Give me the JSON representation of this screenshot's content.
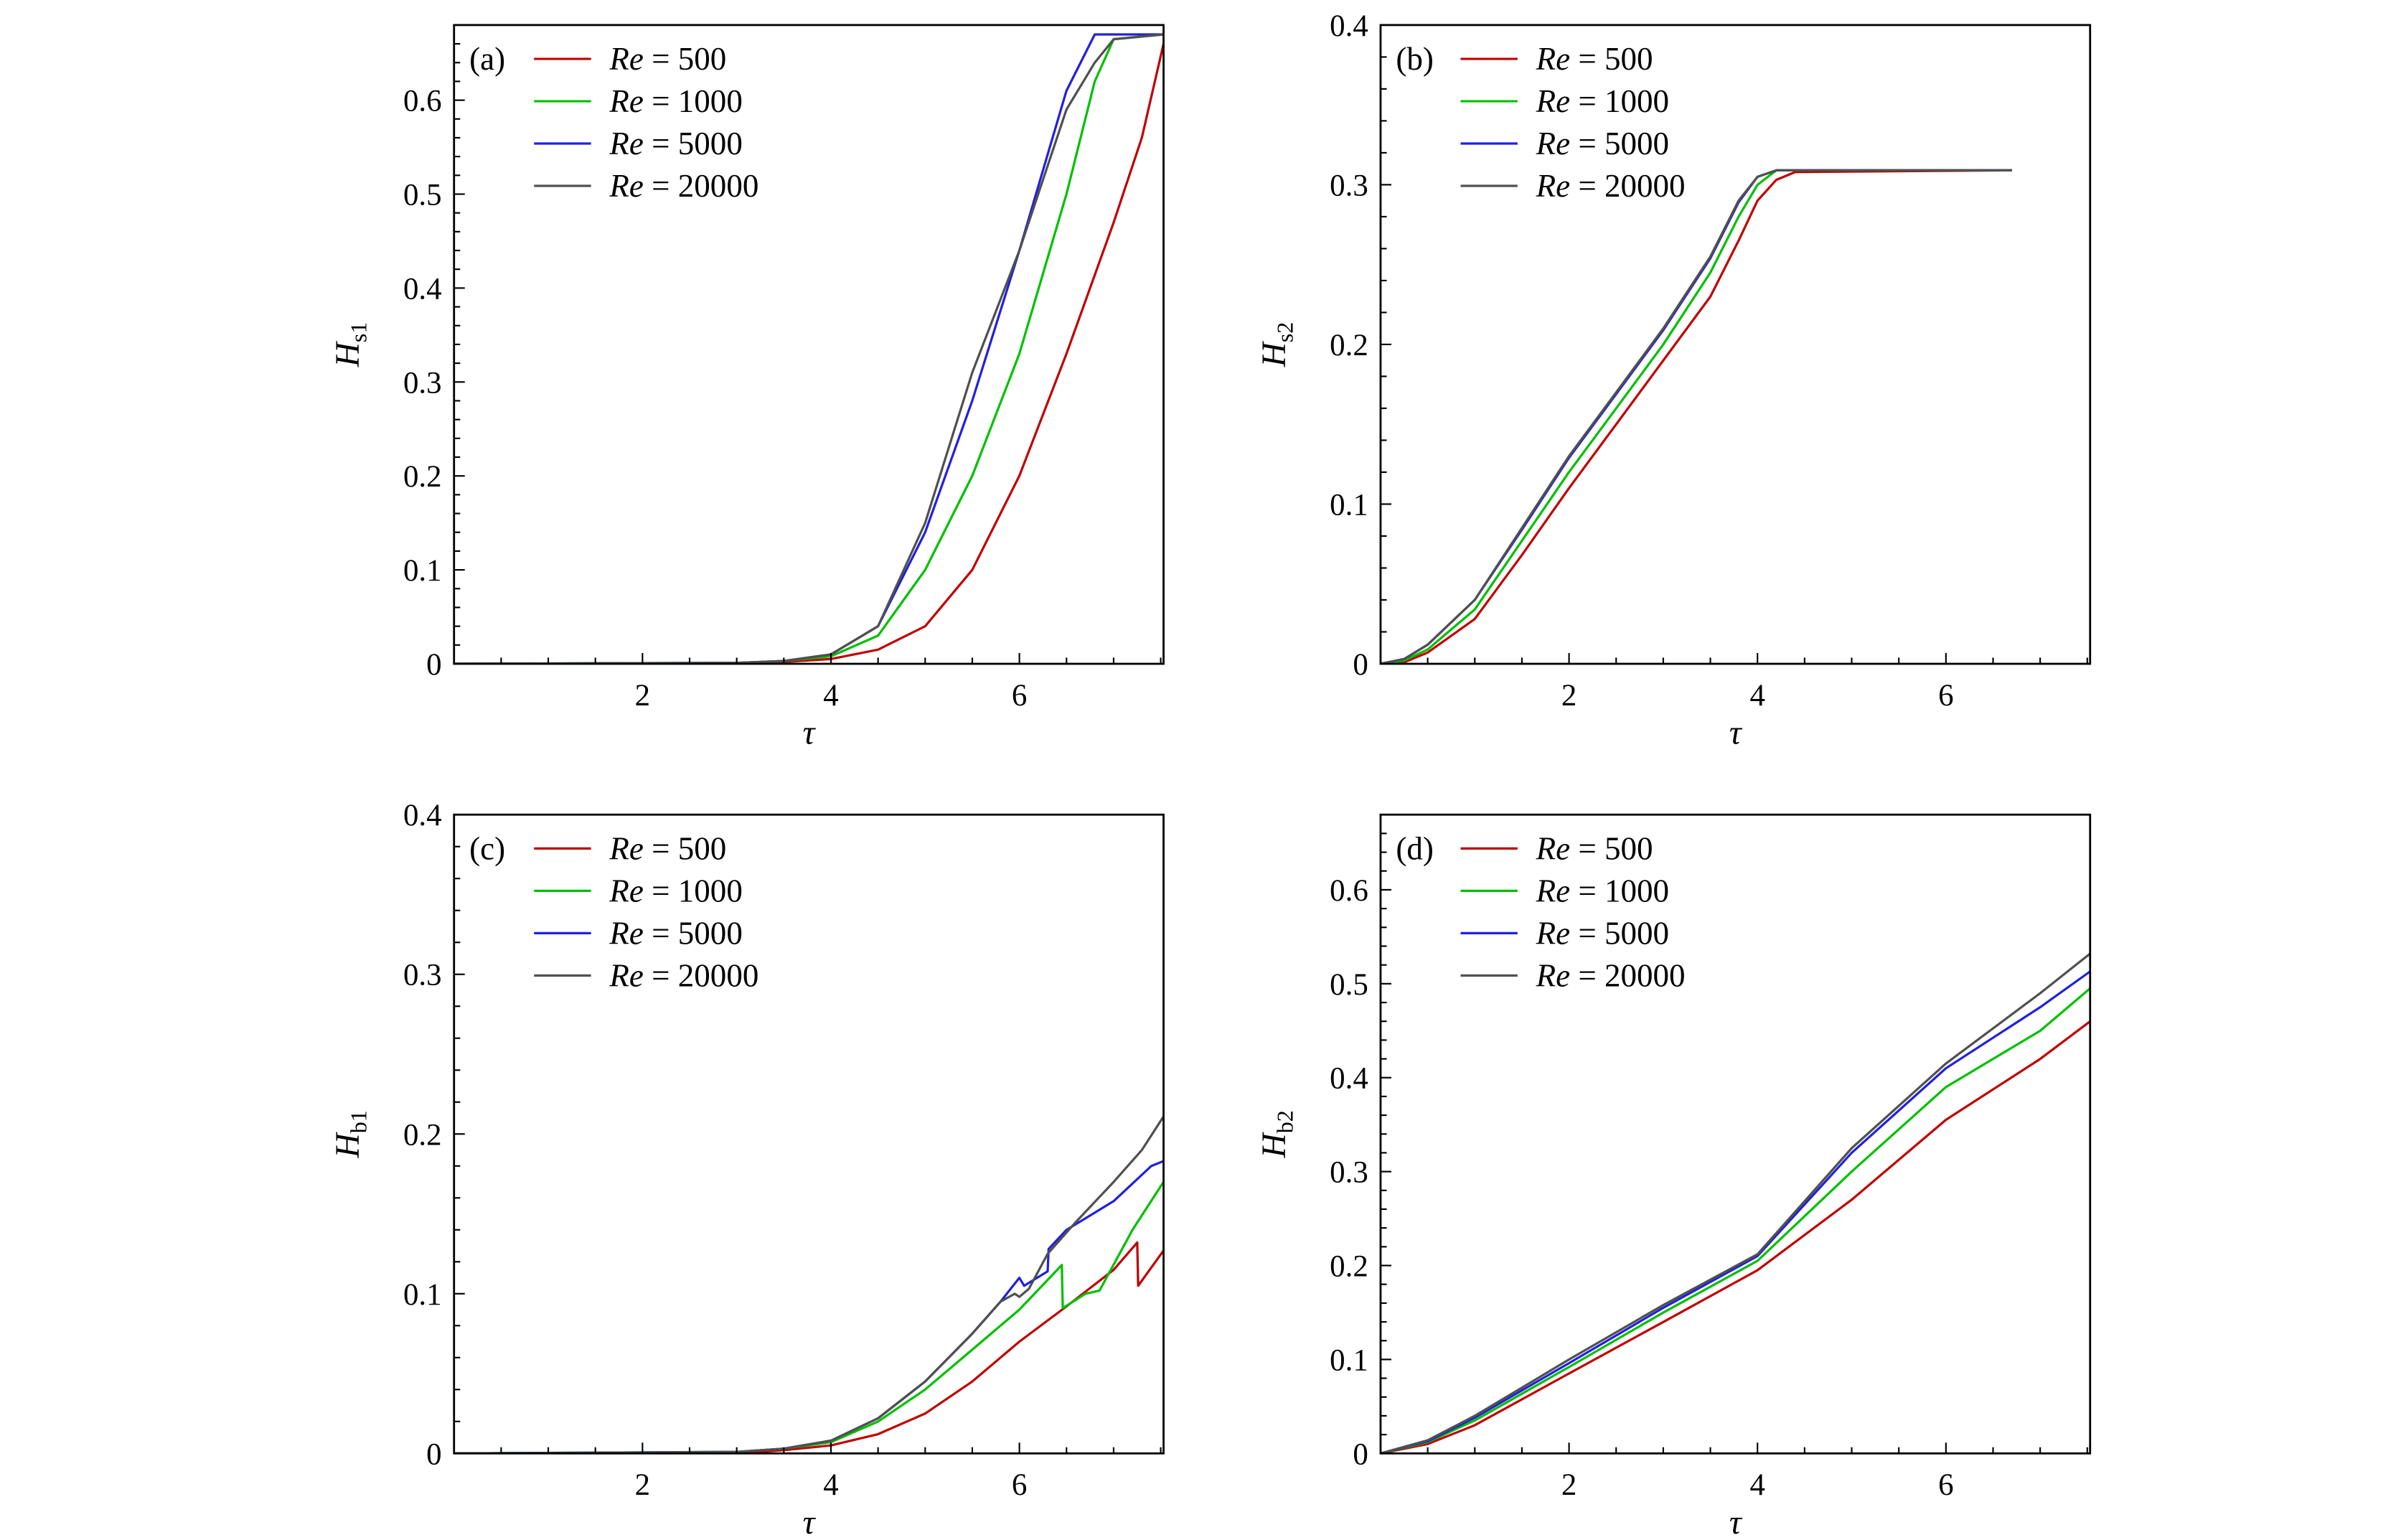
{
  "chart_data": [
    {
      "type": "line",
      "panel_label": "(a)",
      "xlabel": "τ",
      "ylabel": {
        "main": "H",
        "sub": "s1"
      },
      "xlim": [
        0,
        7.53
      ],
      "ylim": [
        0,
        0.68
      ],
      "xticks": [
        2,
        4,
        6
      ],
      "yticks": [
        0,
        0.1,
        0.2,
        0.3,
        0.4,
        0.5,
        0.6
      ],
      "ytick_labels": [
        "0",
        "0.1",
        "0.2",
        "0.3",
        "0.4",
        "0.5",
        "0.6"
      ],
      "legend_placement": "top-left",
      "series": [
        {
          "name": "Re = 500",
          "re_label": "Re",
          "value_label": "500",
          "color": "#c00000",
          "x": [
            0,
            3,
            3.5,
            4,
            4.5,
            5,
            5.5,
            6,
            6.5,
            7,
            7.3,
            7.53
          ],
          "y": [
            0,
            0,
            0.002,
            0.005,
            0.015,
            0.04,
            0.1,
            0.2,
            0.33,
            0.47,
            0.56,
            0.66
          ]
        },
        {
          "name": "Re = 1000",
          "re_label": "Re",
          "value_label": "1000",
          "color": "#00c000",
          "x": [
            0,
            3,
            3.5,
            4,
            4.5,
            5,
            5.5,
            6,
            6.5,
            6.8,
            7,
            7.53
          ],
          "y": [
            0,
            0.001,
            0.003,
            0.008,
            0.03,
            0.1,
            0.2,
            0.33,
            0.5,
            0.62,
            0.665,
            0.67
          ]
        },
        {
          "name": "Re = 5000",
          "re_label": "Re",
          "value_label": "5000",
          "color": "#2020e0",
          "x": [
            0,
            3,
            3.5,
            4,
            4.5,
            5,
            5.5,
            6,
            6.5,
            6.8,
            7.53
          ],
          "y": [
            0,
            0.001,
            0.003,
            0.01,
            0.04,
            0.14,
            0.28,
            0.44,
            0.61,
            0.67,
            0.67
          ]
        },
        {
          "name": "Re = 20000",
          "re_label": "Re",
          "value_label": "20000",
          "color": "#505050",
          "x": [
            0,
            3,
            3.5,
            4,
            4.5,
            5,
            5.5,
            6,
            6.5,
            6.8,
            7,
            7.53
          ],
          "y": [
            0,
            0.001,
            0.003,
            0.01,
            0.04,
            0.15,
            0.31,
            0.44,
            0.59,
            0.64,
            0.665,
            0.67
          ]
        }
      ]
    },
    {
      "type": "line",
      "panel_label": "(b)",
      "xlabel": "τ",
      "ylabel": {
        "main": "H",
        "sub": "s2"
      },
      "xlim": [
        0,
        7.53
      ],
      "ylim": [
        0,
        0.4
      ],
      "xticks": [
        2,
        4,
        6
      ],
      "yticks": [
        0,
        0.1,
        0.2,
        0.3,
        0.4
      ],
      "ytick_labels": [
        "0",
        "0.1",
        "0.2",
        "0.3",
        "0.4"
      ],
      "legend_placement": "top-left",
      "series": [
        {
          "name": "Re = 500",
          "re_label": "Re",
          "value_label": "500",
          "color": "#c00000",
          "x": [
            0,
            0.25,
            0.5,
            1,
            1.5,
            2,
            2.5,
            3,
            3.5,
            3.8,
            4,
            4.2,
            4.4,
            6.7
          ],
          "y": [
            0,
            0.001,
            0.007,
            0.028,
            0.068,
            0.11,
            0.15,
            0.19,
            0.23,
            0.265,
            0.29,
            0.303,
            0.308,
            0.309
          ]
        },
        {
          "name": "Re = 1000",
          "re_label": "Re",
          "value_label": "1000",
          "color": "#00c000",
          "x": [
            0,
            0.25,
            0.5,
            1,
            1.5,
            2,
            2.5,
            3,
            3.5,
            3.8,
            4,
            4.2,
            6.7
          ],
          "y": [
            0,
            0.002,
            0.009,
            0.034,
            0.077,
            0.12,
            0.16,
            0.2,
            0.245,
            0.28,
            0.3,
            0.309,
            0.309
          ]
        },
        {
          "name": "Re = 5000",
          "re_label": "Re",
          "value_label": "5000",
          "color": "#2020e0",
          "x": [
            0,
            0.25,
            0.5,
            1,
            1.5,
            2,
            2.5,
            3,
            3.5,
            3.8,
            4,
            4.2,
            6.7
          ],
          "y": [
            0,
            0.003,
            0.012,
            0.04,
            0.084,
            0.129,
            0.169,
            0.209,
            0.254,
            0.289,
            0.305,
            0.309,
            0.309
          ]
        },
        {
          "name": "Re = 20000",
          "re_label": "Re",
          "value_label": "20000",
          "color": "#505050",
          "x": [
            0,
            0.25,
            0.5,
            1,
            1.5,
            2,
            2.5,
            3,
            3.5,
            3.8,
            4,
            4.2,
            6.7
          ],
          "y": [
            0,
            0.003,
            0.012,
            0.04,
            0.085,
            0.13,
            0.17,
            0.21,
            0.255,
            0.29,
            0.305,
            0.309,
            0.309
          ]
        }
      ]
    },
    {
      "type": "line",
      "panel_label": "(c)",
      "xlabel": "τ",
      "ylabel": {
        "main": "H",
        "sub": "b1"
      },
      "xlim": [
        0,
        7.53
      ],
      "ylim": [
        0,
        0.4
      ],
      "xticks": [
        2,
        4,
        6
      ],
      "yticks": [
        0,
        0.1,
        0.2,
        0.3,
        0.4
      ],
      "ytick_labels": [
        "0",
        "0.1",
        "0.2",
        "0.3",
        "0.4"
      ],
      "legend_placement": "top-left",
      "series": [
        {
          "name": "Re = 500",
          "re_label": "Re",
          "value_label": "500",
          "color": "#c00000",
          "x": [
            0,
            3,
            3.5,
            4,
            4.5,
            5,
            5.5,
            6,
            6.5,
            7,
            7.25,
            7.26,
            7.53
          ],
          "y": [
            0,
            0,
            0.002,
            0.005,
            0.012,
            0.025,
            0.045,
            0.07,
            0.092,
            0.115,
            0.132,
            0.105,
            0.127
          ]
        },
        {
          "name": "Re = 1000",
          "re_label": "Re",
          "value_label": "1000",
          "color": "#00c000",
          "x": [
            0,
            3,
            3.5,
            4,
            4.5,
            5,
            5.5,
            6,
            6.45,
            6.46,
            6.7,
            6.85,
            7.2,
            7.53
          ],
          "y": [
            0,
            0.001,
            0.003,
            0.007,
            0.02,
            0.04,
            0.065,
            0.09,
            0.118,
            0.091,
            0.1,
            0.102,
            0.14,
            0.17
          ]
        },
        {
          "name": "Re = 5000",
          "re_label": "Re",
          "value_label": "5000",
          "color": "#2020e0",
          "x": [
            0,
            3,
            3.5,
            4,
            4.5,
            5,
            5.5,
            5.8,
            6,
            6.05,
            6.3,
            6.31,
            6.5,
            7,
            7.4,
            7.53
          ],
          "y": [
            0,
            0.001,
            0.003,
            0.008,
            0.022,
            0.045,
            0.075,
            0.095,
            0.11,
            0.105,
            0.114,
            0.128,
            0.14,
            0.158,
            0.18,
            0.183
          ]
        },
        {
          "name": "Re = 20000",
          "re_label": "Re",
          "value_label": "20000",
          "color": "#505050",
          "x": [
            0,
            3,
            3.5,
            4,
            4.5,
            5,
            5.5,
            5.8,
            5.95,
            6,
            6.1,
            6.3,
            6.6,
            7,
            7.3,
            7.53
          ],
          "y": [
            0,
            0.001,
            0.003,
            0.008,
            0.022,
            0.045,
            0.075,
            0.095,
            0.1,
            0.098,
            0.103,
            0.125,
            0.145,
            0.17,
            0.19,
            0.211
          ]
        }
      ]
    },
    {
      "type": "line",
      "panel_label": "(d)",
      "xlabel": "τ",
      "ylabel": {
        "main": "H",
        "sub": "b2"
      },
      "xlim": [
        0,
        7.53
      ],
      "ylim": [
        0,
        0.68
      ],
      "xticks": [
        2,
        4,
        6
      ],
      "yticks": [
        0,
        0.1,
        0.2,
        0.3,
        0.4,
        0.5,
        0.6
      ],
      "ytick_labels": [
        "0",
        "0.1",
        "0.2",
        "0.3",
        "0.4",
        "0.5",
        "0.6"
      ],
      "legend_placement": "top-left",
      "series": [
        {
          "name": "Re = 500",
          "re_label": "Re",
          "value_label": "500",
          "color": "#c00000",
          "x": [
            0,
            0.5,
            1,
            2,
            3,
            4,
            5,
            6,
            7,
            7.53
          ],
          "y": [
            0,
            0.01,
            0.03,
            0.085,
            0.14,
            0.195,
            0.27,
            0.355,
            0.42,
            0.46
          ]
        },
        {
          "name": "Re = 1000",
          "re_label": "Re",
          "value_label": "1000",
          "color": "#00c000",
          "x": [
            0,
            0.5,
            1,
            2,
            3,
            4,
            5,
            6,
            7,
            7.53
          ],
          "y": [
            0,
            0.012,
            0.035,
            0.092,
            0.15,
            0.205,
            0.3,
            0.39,
            0.45,
            0.495
          ]
        },
        {
          "name": "Re = 5000",
          "re_label": "Re",
          "value_label": "5000",
          "color": "#2020e0",
          "x": [
            0,
            0.5,
            1,
            2,
            3,
            4,
            5,
            6,
            7,
            7.53
          ],
          "y": [
            0,
            0.013,
            0.038,
            0.096,
            0.155,
            0.21,
            0.32,
            0.41,
            0.475,
            0.513
          ]
        },
        {
          "name": "Re = 20000",
          "re_label": "Re",
          "value_label": "20000",
          "color": "#505050",
          "x": [
            0,
            0.5,
            1,
            2,
            3,
            4,
            5,
            6,
            7,
            7.53
          ],
          "y": [
            0,
            0.014,
            0.04,
            0.1,
            0.158,
            0.212,
            0.325,
            0.415,
            0.49,
            0.532
          ]
        }
      ]
    }
  ]
}
